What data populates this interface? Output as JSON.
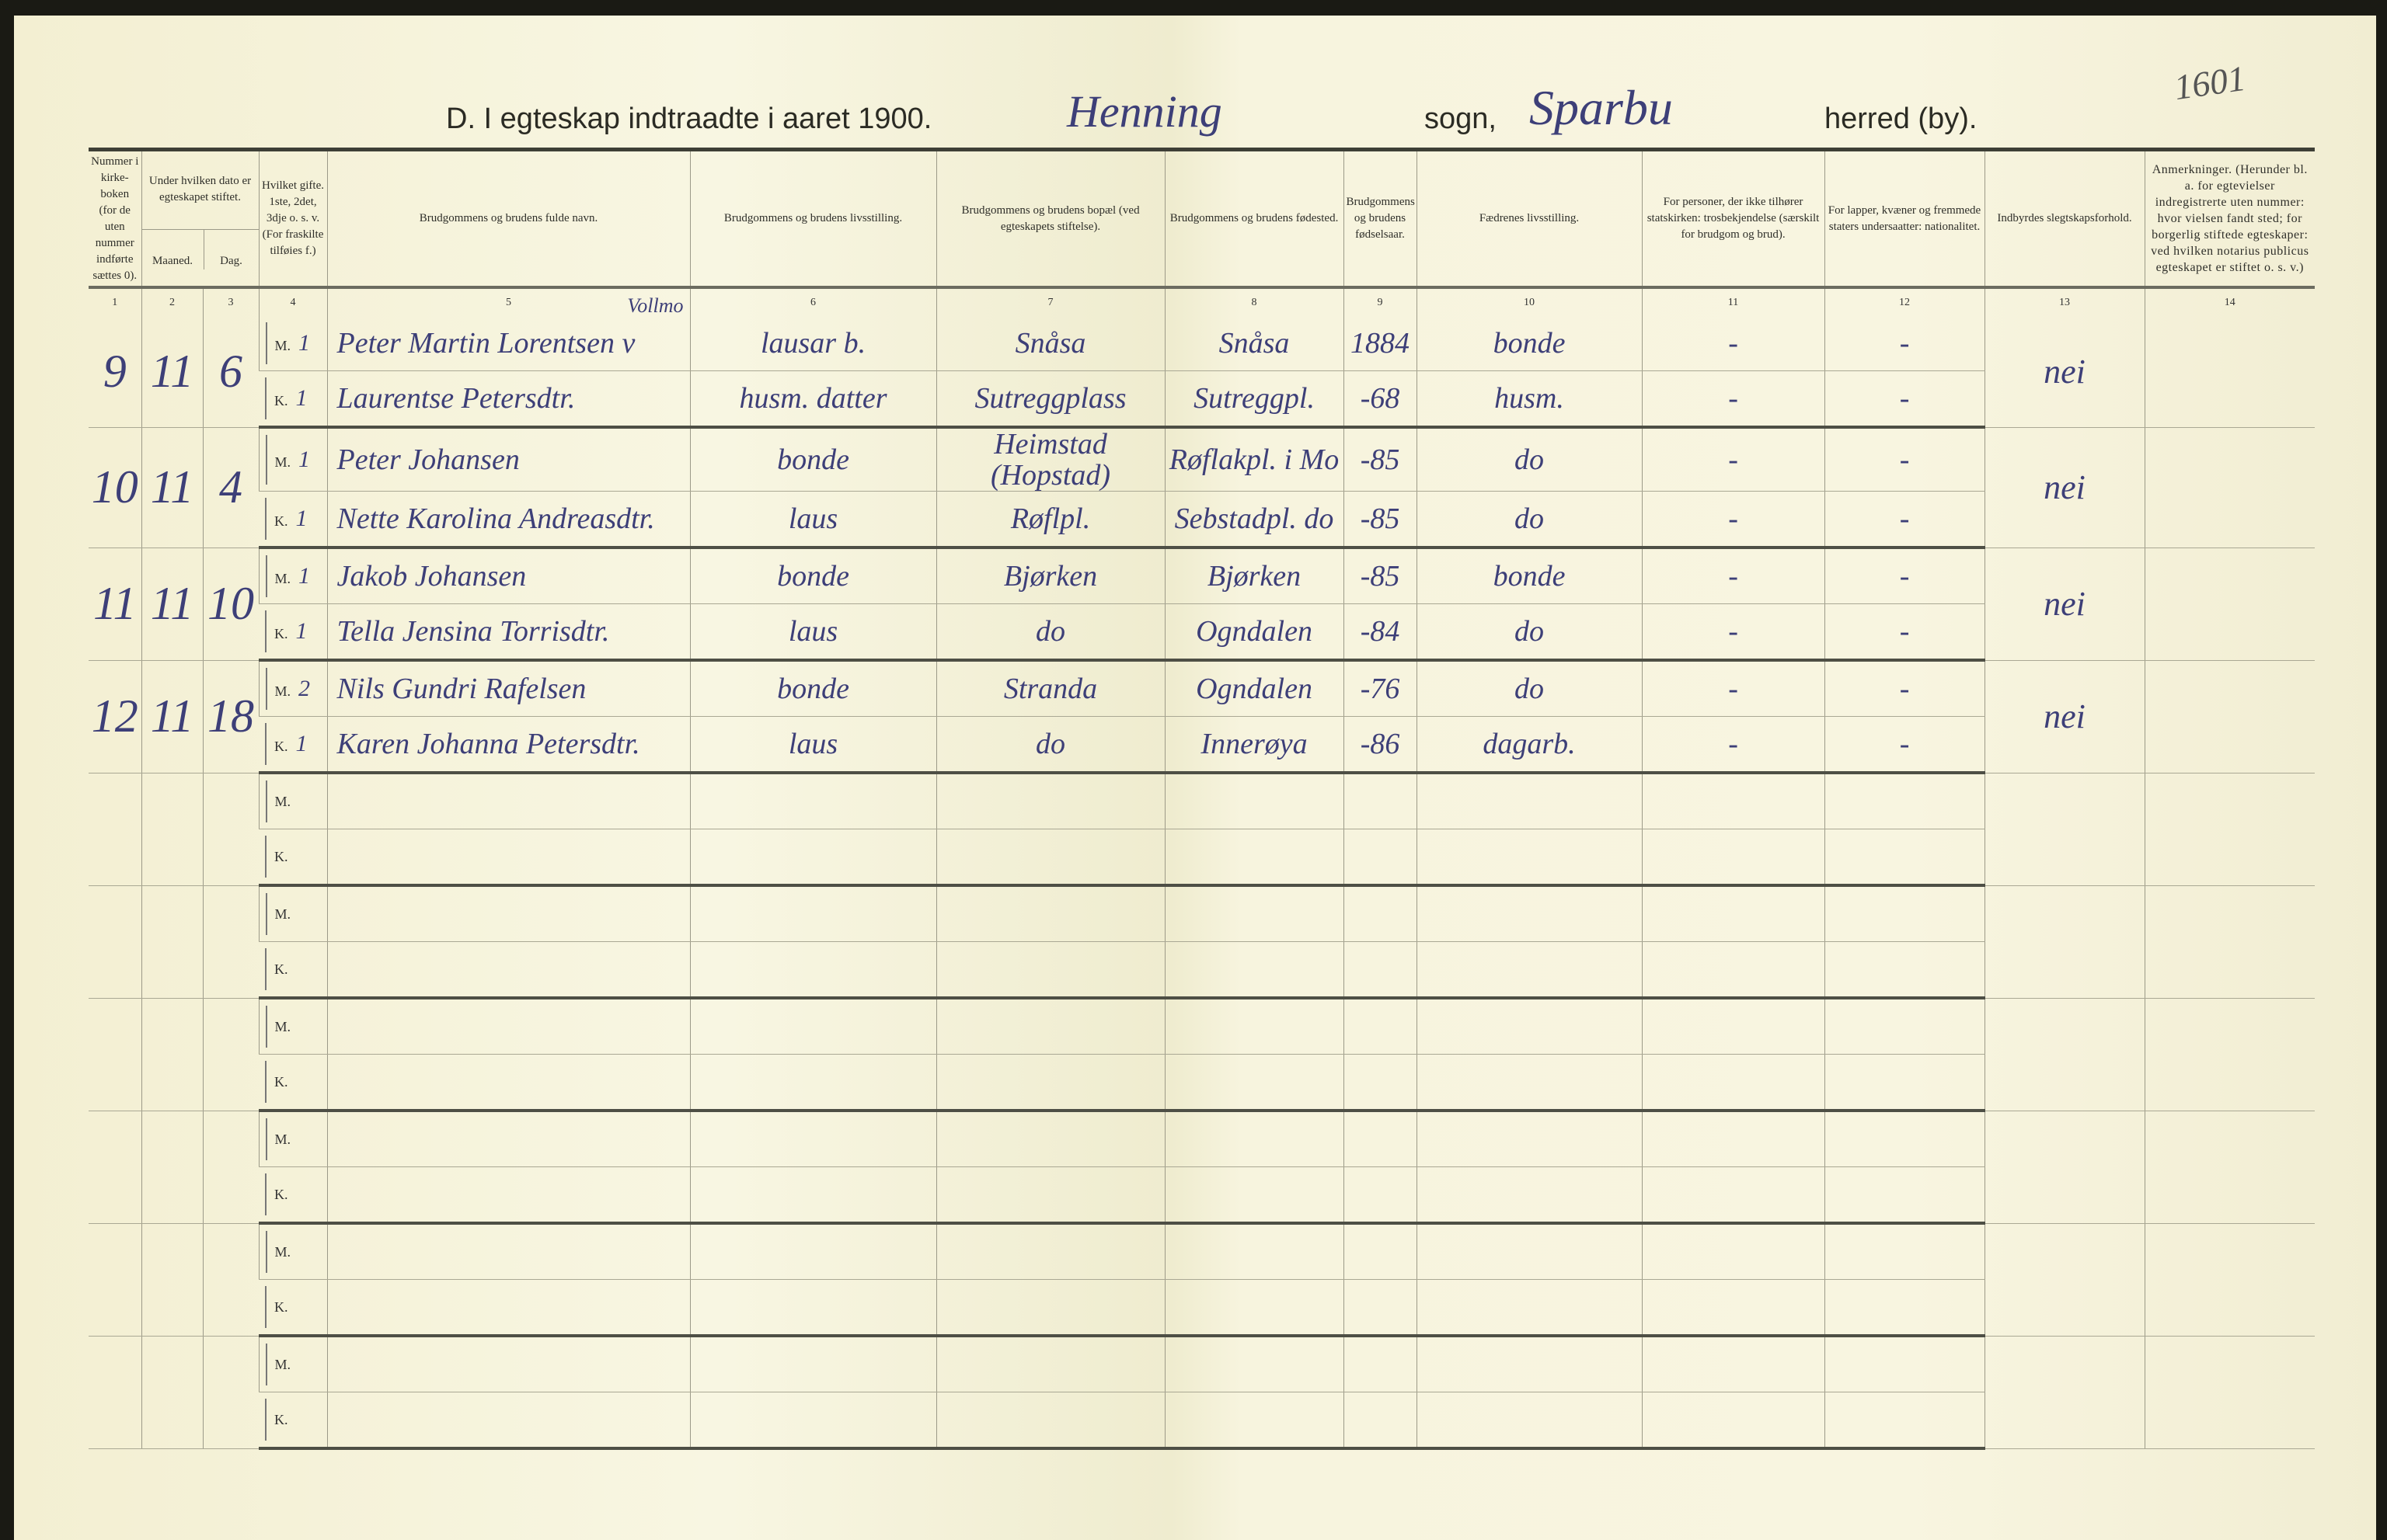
{
  "header": {
    "title_prefix": "D.  I egteskap indtraadte i aaret 1900.",
    "parish": "Henning",
    "sogn_label": "sogn,",
    "herred": "Sparbu",
    "herred_label": "herred (by).",
    "page_number": "1601"
  },
  "columns": [
    {
      "no": "1",
      "label": "Nummer i kirke-boken (for de uten nummer indførte sættes 0)."
    },
    {
      "no": "2",
      "label": "Maaned."
    },
    {
      "no": "3",
      "label": "Dag."
    },
    {
      "no": "4",
      "label": "Hvilket gifte. 1ste, 2det, 3dje o. s. v. (For fraskilte tilføies f.)"
    },
    {
      "no": "5",
      "label": "Brudgommens og brudens fulde navn."
    },
    {
      "no": "6",
      "label": "Brudgommens og brudens livsstilling."
    },
    {
      "no": "7",
      "label": "Brudgommens og brudens bopæl (ved egteskapets stiftelse)."
    },
    {
      "no": "8",
      "label": "Brudgommens og brudens fødested."
    },
    {
      "no": "9",
      "label": "Brudgommens og brudens fødselsaar."
    },
    {
      "no": "10",
      "label": "Fædrenes livsstilling."
    },
    {
      "no": "11",
      "label": "For personer, der ikke tilhører statskirken: trosbekjendelse (særskilt for brudgom og brud)."
    },
    {
      "no": "12",
      "label": "For lapper, kvæner og fremmede staters undersaatter: nationalitet."
    },
    {
      "no": "13",
      "label": "Indbyrdes slegtskapsforhold."
    },
    {
      "no": "14",
      "label": "Anmerkninger. (Herunder bl. a. for egtevielser indregistrerte uten nummer: hvor vielsen fandt sted; for borgerlig stiftede egteskaper: ved hvilken notarius publicus egteskapet er stiftet o. s. v.)"
    }
  ],
  "date_group_label": "Under hvilken dato er egteskapet stiftet.",
  "m_label": "M.",
  "k_label": "K.",
  "entries": [
    {
      "number": "9",
      "month": "11",
      "day": "6",
      "relation": "nei",
      "groom": {
        "nr": "1",
        "name": "Peter Martin Lorentsen v",
        "name_note": "Vollmo",
        "occupation": "lausar b.",
        "residence": "Snåsa",
        "birthplace": "Snåsa",
        "birth_year": "1884",
        "father": "bonde",
        "faith": "-",
        "nationality": "-"
      },
      "bride": {
        "nr": "1",
        "name": "Laurentse Petersdtr.",
        "occupation": "husm. datter",
        "residence": "Sutreggplass",
        "birthplace": "Sutreggpl.",
        "birth_year": "-68",
        "father": "husm.",
        "faith": "-",
        "nationality": "-"
      }
    },
    {
      "number": "10",
      "month": "11",
      "day": "4",
      "relation": "nei",
      "groom": {
        "nr": "1",
        "name": "Peter Johansen",
        "occupation": "bonde",
        "residence": "Heimstad (Hopstad)",
        "birthplace": "Røflakpl. i Mo",
        "birth_year": "-85",
        "father": "do",
        "faith": "-",
        "nationality": "-"
      },
      "bride": {
        "nr": "1",
        "name": "Nette Karolina Andreasdtr.",
        "occupation": "laus",
        "residence": "Røflpl.",
        "birthplace": "Sebstadpl. do",
        "birth_year": "-85",
        "father": "do",
        "faith": "-",
        "nationality": "-"
      }
    },
    {
      "number": "11",
      "month": "11",
      "day": "10",
      "relation": "nei",
      "groom": {
        "nr": "1",
        "name": "Jakob Johansen",
        "occupation": "bonde",
        "residence": "Bjørken",
        "birthplace": "Bjørken",
        "birth_year": "-85",
        "father": "bonde",
        "faith": "-",
        "nationality": "-"
      },
      "bride": {
        "nr": "1",
        "name": "Tella Jensina Torrisdtr.",
        "occupation": "laus",
        "residence": "do",
        "birthplace": "Ogndalen",
        "birth_year": "-84",
        "father": "do",
        "faith": "-",
        "nationality": "-"
      }
    },
    {
      "number": "12",
      "month": "11",
      "day": "18",
      "relation": "nei",
      "groom": {
        "nr": "2",
        "name": "Nils Gundri Rafelsen",
        "occupation": "bonde",
        "residence": "Stranda",
        "birthplace": "Ogndalen",
        "birth_year": "-76",
        "father": "do",
        "faith": "-",
        "nationality": "-"
      },
      "bride": {
        "nr": "1",
        "name": "Karen Johanna Petersdtr.",
        "occupation": "laus",
        "residence": "do",
        "birthplace": "Innerøya",
        "birth_year": "-86",
        "father": "dagarb.",
        "faith": "-",
        "nationality": "-"
      }
    }
  ],
  "empty_rows": 6,
  "ink_color": "#3d3f78"
}
